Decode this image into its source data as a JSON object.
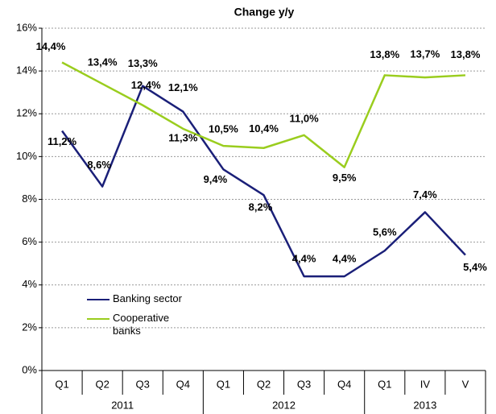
{
  "chart_data": {
    "type": "line",
    "title": "Change y/y",
    "category_groups": [
      {
        "label": "2011",
        "categories": [
          "Q1",
          "Q2",
          "Q3",
          "Q4"
        ]
      },
      {
        "label": "2012",
        "categories": [
          "Q1",
          "Q2",
          "Q3",
          "Q4"
        ]
      },
      {
        "label": "2013",
        "categories": [
          "Q1",
          "IV",
          "V"
        ]
      }
    ],
    "series": [
      {
        "name": "Banking sector",
        "color": "#1a1f78",
        "values": [
          11.2,
          8.6,
          13.3,
          12.1,
          9.4,
          8.2,
          4.4,
          4.4,
          5.6,
          7.4,
          5.4
        ],
        "value_labels": [
          "11,2%",
          "8,6%",
          "13,3%",
          "12,1%",
          "9,4%",
          "8,2%",
          "4,4%",
          "4,4%",
          "5,6%",
          "7,4%",
          "5,4%"
        ]
      },
      {
        "name": "Cooperative banks",
        "color": "#9acd1e",
        "values": [
          14.4,
          13.4,
          12.4,
          11.3,
          10.5,
          10.4,
          11.0,
          9.5,
          13.8,
          13.7,
          13.8
        ],
        "value_labels": [
          "14,4%",
          "13,4%",
          "12,4%",
          "11,3%",
          "10,5%",
          "10,4%",
          "11,0%",
          "9,5%",
          "13,8%",
          "13,7%",
          "13,8%"
        ]
      }
    ],
    "ylim": [
      0,
      16
    ],
    "yticks": [
      {
        "value": 0,
        "label": "0%"
      },
      {
        "value": 2,
        "label": "2%"
      },
      {
        "value": 4,
        "label": "4%"
      },
      {
        "value": 6,
        "label": "6%"
      },
      {
        "value": 8,
        "label": "8%"
      },
      {
        "value": 10,
        "label": "10%"
      },
      {
        "value": 12,
        "label": "12%"
      },
      {
        "value": 14,
        "label": "14%"
      },
      {
        "value": 16,
        "label": "16%"
      }
    ],
    "grid": true,
    "legend": "lower left"
  }
}
